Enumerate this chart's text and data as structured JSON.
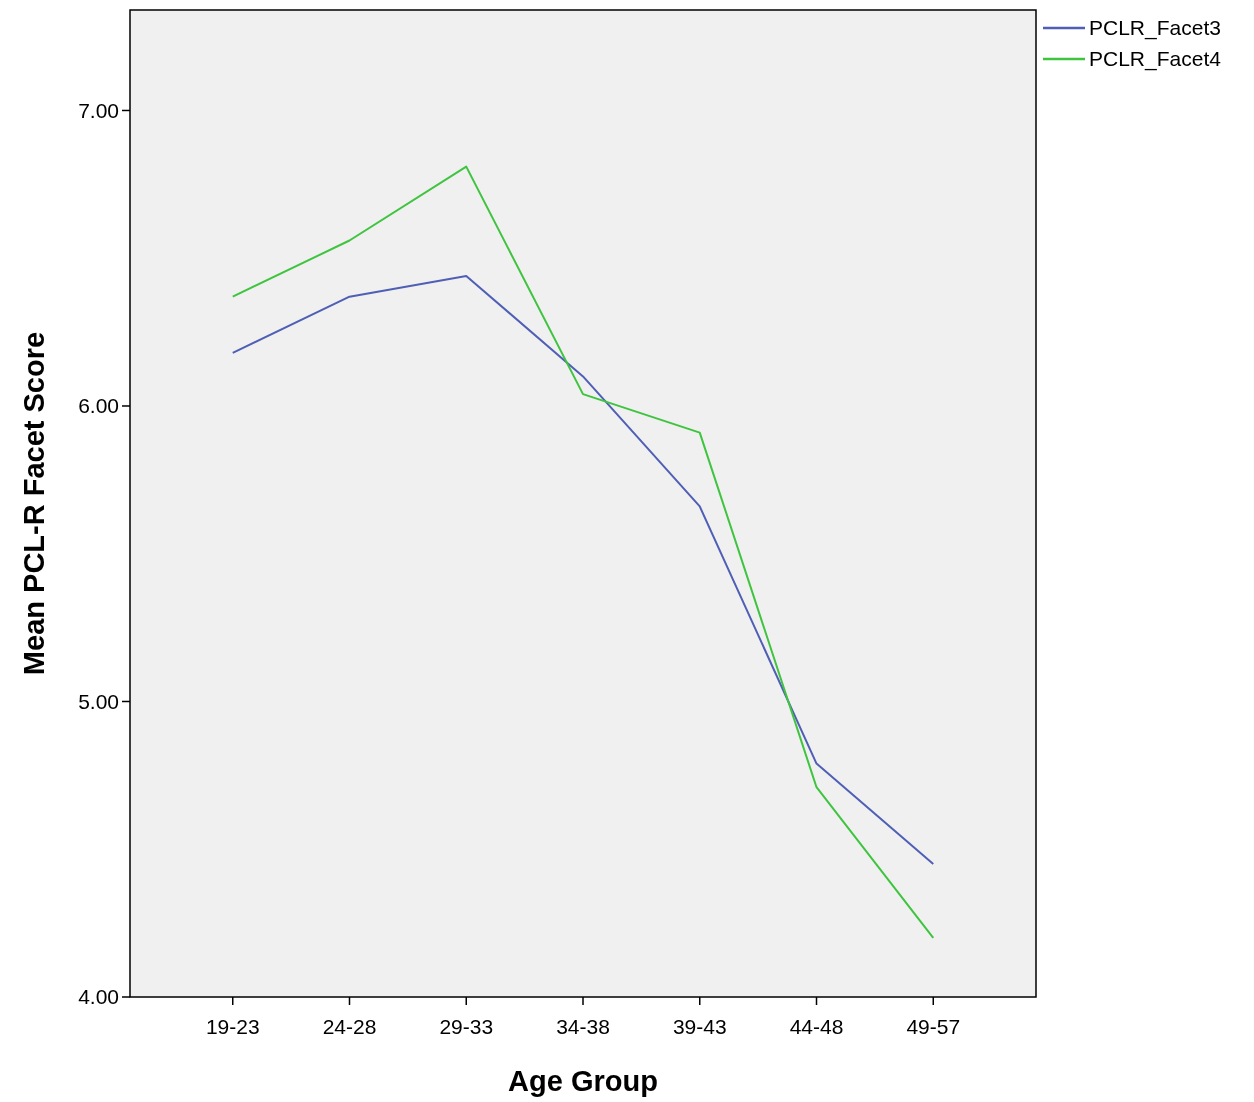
{
  "chart_data": {
    "type": "line",
    "xlabel": "Age Group",
    "ylabel": "Mean PCL-R Facet Score",
    "categories": [
      "19-23",
      "24-28",
      "29-33",
      "34-38",
      "39-43",
      "44-48",
      "49-57"
    ],
    "series": [
      {
        "name": "PCLR_Facet3",
        "color": "#4f5fb5",
        "values": [
          6.18,
          6.37,
          6.44,
          6.1,
          5.66,
          4.79,
          4.45
        ]
      },
      {
        "name": "PCLR_Facet4",
        "color": "#3fc43f",
        "values": [
          6.37,
          6.56,
          6.81,
          6.04,
          5.91,
          4.71,
          4.2
        ]
      }
    ],
    "ylim": [
      4,
      7.34
    ],
    "yticks": [
      {
        "value": 4,
        "label": "4.00"
      },
      {
        "value": 5,
        "label": "5.00"
      },
      {
        "value": 6,
        "label": "6.00"
      },
      {
        "value": 7,
        "label": "7.00"
      }
    ],
    "grid": false,
    "legend": "top right",
    "marker": "none",
    "line_style": "solid"
  }
}
